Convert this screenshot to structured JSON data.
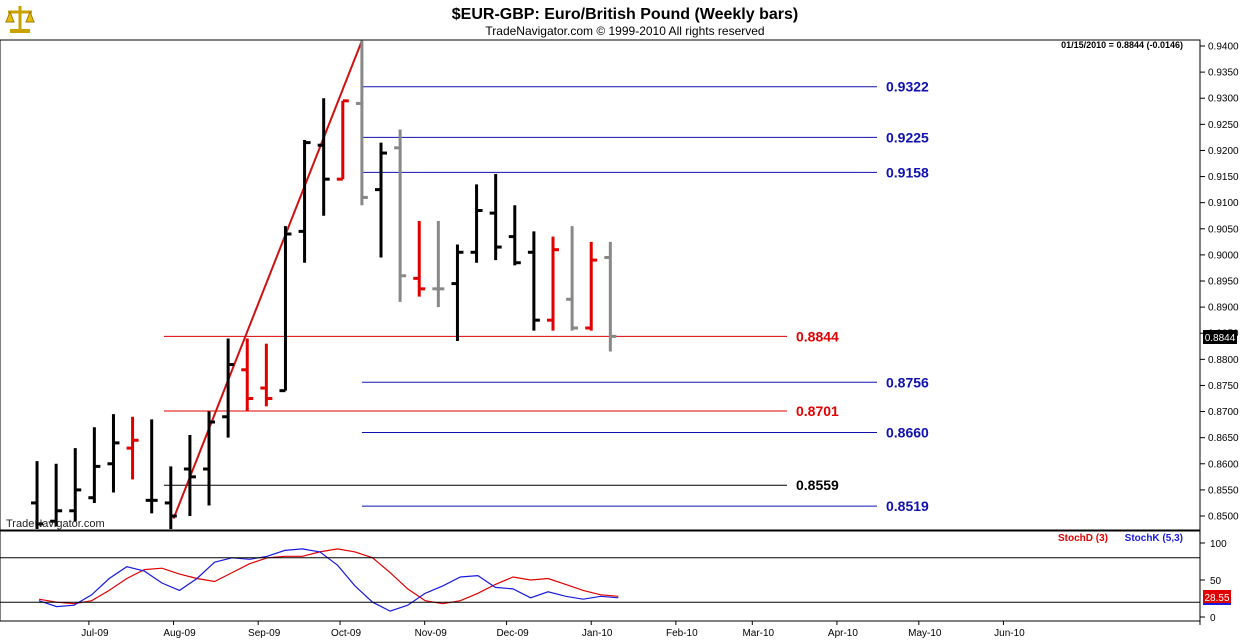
{
  "header": {
    "title": "$EUR-GBP:  Euro/British Pound  (Weekly bars)",
    "subtitle": "TradeNavigator.com © 1999-2010 All rights reserved",
    "quote": "01/15/2010 = 0.8844 (-0.0146)",
    "watermark": "TradeNavigator.com",
    "logo_icon": "gold-scales-icon"
  },
  "colors": {
    "up_bar": "#000000",
    "down_bar": "#e00000",
    "neutral_bar": "#888888",
    "blue_level": "#1010b0",
    "red_level": "#e00000",
    "black_level": "#000000",
    "stoch_d": "#e00000",
    "stoch_k": "#1a1add",
    "trend_line": "#d01010",
    "axis_box": "#000000"
  },
  "chart_data": [
    {
      "type": "ohlc",
      "title": "$EUR-GBP:  Euro/British Pound  (Weekly bars)",
      "ylim": [
        0.848,
        0.942
      ],
      "y_ticks": [
        "0.9400",
        "0.9350",
        "0.9300",
        "0.9250",
        "0.9200",
        "0.9150",
        "0.9100",
        "0.9050",
        "0.9000",
        "0.8950",
        "0.8900",
        "0.8850",
        "0.8800",
        "0.8750",
        "0.8700",
        "0.8650",
        "0.8600",
        "0.8550",
        "0.8500"
      ],
      "y_tick_values": [
        0.94,
        0.935,
        0.93,
        0.925,
        0.92,
        0.915,
        0.91,
        0.905,
        0.9,
        0.895,
        0.89,
        0.885,
        0.88,
        0.875,
        0.87,
        0.865,
        0.86,
        0.855,
        0.85
      ],
      "x_ticks": [
        "Jul-09",
        "Aug-09",
        "Sep-09",
        "Oct-09",
        "Nov-09",
        "Dec-09",
        "Jan-10",
        "Feb-10",
        "Mar-10",
        "Apr-10",
        "May-10",
        "Jun-10"
      ],
      "last_price_label": "0.8844",
      "bars": [
        {
          "date": "2009-06-12",
          "o": 0.8525,
          "h": 0.8605,
          "l": 0.8475,
          "c": 0.8485,
          "color": "up"
        },
        {
          "date": "2009-06-19",
          "o": 0.849,
          "h": 0.86,
          "l": 0.848,
          "c": 0.851,
          "color": "up"
        },
        {
          "date": "2009-06-26",
          "o": 0.851,
          "h": 0.863,
          "l": 0.849,
          "c": 0.855,
          "color": "up"
        },
        {
          "date": "2009-07-03",
          "o": 0.8535,
          "h": 0.867,
          "l": 0.8525,
          "c": 0.8595,
          "color": "up"
        },
        {
          "date": "2009-07-10",
          "o": 0.86,
          "h": 0.8695,
          "l": 0.8545,
          "c": 0.864,
          "color": "up"
        },
        {
          "date": "2009-07-17",
          "o": 0.863,
          "h": 0.869,
          "l": 0.857,
          "c": 0.8645,
          "color": "down"
        },
        {
          "date": "2009-07-24",
          "o": 0.853,
          "h": 0.8685,
          "l": 0.8505,
          "c": 0.853,
          "color": "up"
        },
        {
          "date": "2009-07-31",
          "o": 0.8525,
          "h": 0.8595,
          "l": 0.8475,
          "c": 0.85,
          "color": "up"
        },
        {
          "date": "2009-08-07",
          "o": 0.859,
          "h": 0.8655,
          "l": 0.85,
          "c": 0.8575,
          "color": "up"
        },
        {
          "date": "2009-08-14",
          "o": 0.859,
          "h": 0.87,
          "l": 0.852,
          "c": 0.868,
          "color": "up"
        },
        {
          "date": "2009-08-21",
          "o": 0.869,
          "h": 0.884,
          "l": 0.865,
          "c": 0.879,
          "color": "up"
        },
        {
          "date": "2009-08-28",
          "o": 0.878,
          "h": 0.884,
          "l": 0.87,
          "c": 0.8725,
          "color": "down"
        },
        {
          "date": "2009-09-04",
          "o": 0.8745,
          "h": 0.883,
          "l": 0.871,
          "c": 0.8725,
          "color": "down"
        },
        {
          "date": "2009-09-11",
          "o": 0.874,
          "h": 0.9055,
          "l": 0.874,
          "c": 0.904,
          "color": "up"
        },
        {
          "date": "2009-09-18",
          "o": 0.9045,
          "h": 0.922,
          "l": 0.8985,
          "c": 0.9215,
          "color": "up"
        },
        {
          "date": "2009-09-25",
          "o": 0.921,
          "h": 0.93,
          "l": 0.9075,
          "c": 0.9145,
          "color": "up"
        },
        {
          "date": "2009-10-02",
          "o": 0.9145,
          "h": 0.9295,
          "l": 0.9145,
          "c": 0.9295,
          "color": "down"
        },
        {
          "date": "2009-10-09",
          "o": 0.929,
          "h": 0.941,
          "l": 0.9095,
          "c": 0.911,
          "color": "neutral"
        },
        {
          "date": "2009-10-16",
          "o": 0.9125,
          "h": 0.9215,
          "l": 0.8995,
          "c": 0.9195,
          "color": "up"
        },
        {
          "date": "2009-10-23",
          "o": 0.9205,
          "h": 0.924,
          "l": 0.891,
          "c": 0.896,
          "color": "neutral"
        },
        {
          "date": "2009-10-30",
          "o": 0.8955,
          "h": 0.9065,
          "l": 0.892,
          "c": 0.8935,
          "color": "down"
        },
        {
          "date": "2009-11-06",
          "o": 0.8935,
          "h": 0.9065,
          "l": 0.89,
          "c": 0.8935,
          "color": "neutral"
        },
        {
          "date": "2009-11-13",
          "o": 0.8945,
          "h": 0.902,
          "l": 0.8835,
          "c": 0.9005,
          "color": "up"
        },
        {
          "date": "2009-11-20",
          "o": 0.9005,
          "h": 0.9135,
          "l": 0.8985,
          "c": 0.9085,
          "color": "up"
        },
        {
          "date": "2009-11-27",
          "o": 0.908,
          "h": 0.9155,
          "l": 0.899,
          "c": 0.9015,
          "color": "up"
        },
        {
          "date": "2009-12-04",
          "o": 0.9035,
          "h": 0.9095,
          "l": 0.898,
          "c": 0.8985,
          "color": "up"
        },
        {
          "date": "2009-12-11",
          "o": 0.9005,
          "h": 0.9045,
          "l": 0.8855,
          "c": 0.8875,
          "color": "up"
        },
        {
          "date": "2009-12-18",
          "o": 0.8875,
          "h": 0.9035,
          "l": 0.8855,
          "c": 0.901,
          "color": "down"
        },
        {
          "date": "2009-12-25",
          "o": 0.8915,
          "h": 0.9055,
          "l": 0.8855,
          "c": 0.886,
          "color": "neutral"
        },
        {
          "date": "2010-01-01",
          "o": 0.886,
          "h": 0.9025,
          "l": 0.8855,
          "c": 0.899,
          "color": "down"
        },
        {
          "date": "2010-01-08",
          "o": 0.8995,
          "h": 0.9025,
          "l": 0.8815,
          "c": 0.8844,
          "color": "neutral"
        }
      ],
      "levels": [
        {
          "value": 0.9322,
          "label": "0.9322",
          "color": "blue",
          "start": "2009-10-09"
        },
        {
          "value": 0.9225,
          "label": "0.9225",
          "color": "blue",
          "start": "2009-10-09"
        },
        {
          "value": 0.9158,
          "label": "0.9158",
          "color": "blue",
          "start": "2009-10-09"
        },
        {
          "value": 0.8844,
          "label": "0.8844",
          "color": "red",
          "start": "2009-08-07"
        },
        {
          "value": 0.8756,
          "label": "0.8756",
          "color": "blue",
          "start": "2009-10-09"
        },
        {
          "value": 0.8701,
          "label": "0.8701",
          "color": "red",
          "start": "2009-08-07"
        },
        {
          "value": 0.866,
          "label": "0.8660",
          "color": "blue",
          "start": "2009-10-09"
        },
        {
          "value": 0.8559,
          "label": "0.8559",
          "color": "black",
          "start": "2009-08-07"
        },
        {
          "value": 0.8519,
          "label": "0.8519",
          "color": "blue",
          "start": "2009-10-09"
        }
      ],
      "trend_line": {
        "from": {
          "date": "2009-08-01",
          "y": 0.8495
        },
        "to": {
          "date": "2009-10-09",
          "y": 0.941
        }
      }
    },
    {
      "type": "line",
      "ylim": [
        0,
        100
      ],
      "y_ticks": [
        "100",
        "50",
        "0"
      ],
      "y_tick_values": [
        100,
        50,
        0
      ],
      "reference_lines": [
        80,
        20
      ],
      "last_value_label": "28.55",
      "series": [
        {
          "name": "StochD (3)",
          "color_key": "stoch_d",
          "values": [
            24,
            20,
            18,
            22,
            36,
            52,
            64,
            66,
            58,
            52,
            48,
            60,
            72,
            80,
            82,
            82,
            88,
            92,
            88,
            80,
            60,
            38,
            22,
            18,
            22,
            32,
            44,
            54,
            50,
            52,
            44,
            36,
            30,
            28
          ]
        },
        {
          "name": "StochK (5,3)",
          "color_key": "stoch_k",
          "values": [
            22,
            14,
            16,
            30,
            52,
            68,
            62,
            46,
            36,
            52,
            74,
            80,
            78,
            82,
            90,
            92,
            88,
            70,
            42,
            20,
            8,
            16,
            32,
            42,
            54,
            56,
            40,
            38,
            26,
            34,
            28,
            24,
            28,
            26
          ]
        }
      ]
    }
  ]
}
